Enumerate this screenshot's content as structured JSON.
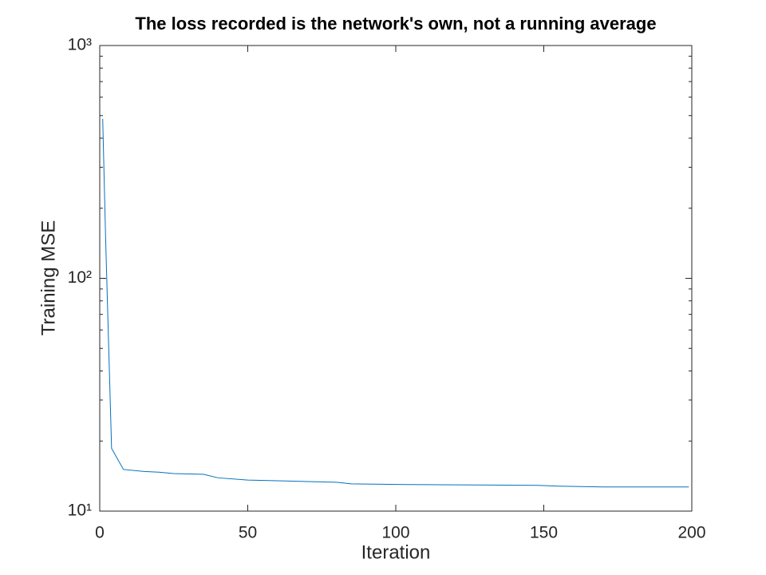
{
  "chart_data": {
    "type": "line",
    "title": "The loss recorded is the network's own, not a running average",
    "x_label": "Iteration",
    "y_label": "Training MSE",
    "x": [
      1,
      2,
      3,
      4,
      8,
      15,
      20,
      25,
      35,
      40,
      50,
      60,
      80,
      85,
      105,
      148,
      155,
      170,
      199
    ],
    "values": [
      484,
      146,
      52,
      18.6,
      15.1,
      14.8,
      14.7,
      14.5,
      14.4,
      13.9,
      13.6,
      13.5,
      13.3,
      13.1,
      13.0,
      12.9,
      12.8,
      12.7,
      12.7
    ],
    "color": "#0072bd",
    "xlim": [
      0,
      200
    ],
    "xticks": [
      0,
      50,
      100,
      150,
      200
    ],
    "ylim": [
      10,
      1000
    ],
    "yscale": "log",
    "yticks": [
      {
        "value": 10,
        "label": "10¹"
      },
      {
        "value": 100,
        "label": "10²"
      },
      {
        "value": 1000,
        "label": "10³"
      }
    ],
    "yminorticks": [
      20,
      30,
      40,
      50,
      60,
      70,
      80,
      90,
      200,
      300,
      400,
      500,
      600,
      700,
      800,
      900
    ],
    "grid": false
  }
}
